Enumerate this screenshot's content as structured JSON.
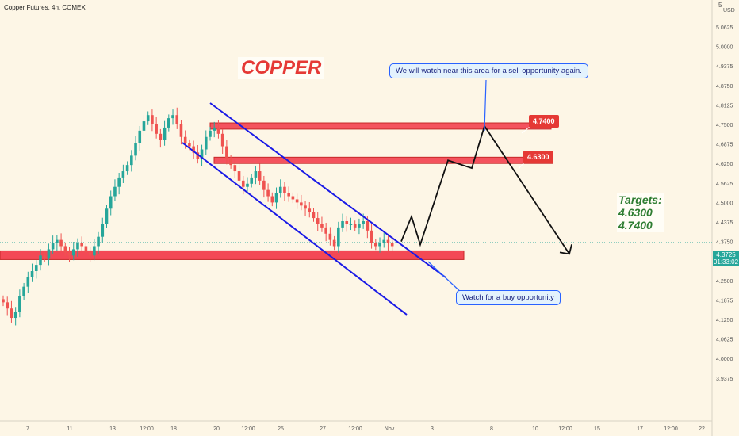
{
  "header": {
    "title": "Copper Futures, 4h, COMEX"
  },
  "price_axis": {
    "currency": "USD",
    "top_marker": "5",
    "labels": [
      "5.0625",
      "5.0000",
      "4.9375",
      "4.8750",
      "4.8125",
      "4.7500",
      "4.6875",
      "4.6250",
      "4.5625",
      "4.5000",
      "4.4375",
      "4.3750",
      "4.3125",
      "4.2500",
      "4.1875",
      "4.1250",
      "4.0625",
      "4.0000",
      "3.9375"
    ],
    "current_price": "4.3725",
    "current_time": "01:33:02"
  },
  "time_axis": {
    "labels": [
      "7",
      "11",
      "13",
      "12:00",
      "18",
      "20",
      "12:00",
      "25",
      "27",
      "12:00",
      "Nov",
      "3",
      "8",
      "10",
      "12:00",
      "15",
      "17",
      "12:00",
      "22"
    ]
  },
  "annotations": {
    "title": "COPPER",
    "sell_note": "We will watch near this area for a sell opportunity again.",
    "buy_note": "Watch for a buy opportunity",
    "level_1": "4.7400",
    "level_2": "4.6300",
    "targets_heading": "Targets:",
    "target_1": "4.6300",
    "target_2": "4.7400"
  },
  "colors": {
    "bull": "#26A69A",
    "bear": "#EF5350",
    "channel": "#1A1AE6",
    "zone": "#F23645",
    "background": "#FDF6E6"
  },
  "chart_data": {
    "type": "candlestick",
    "title": "Copper Futures, 4h, COMEX",
    "ylim": [
      3.92,
      5.1
    ],
    "current_price": 4.3725,
    "close_series": [
      4.18,
      4.16,
      4.13,
      4.15,
      4.2,
      4.23,
      4.26,
      4.28,
      4.3,
      4.33,
      4.32,
      4.35,
      4.37,
      4.38,
      4.36,
      4.34,
      4.33,
      4.35,
      4.37,
      4.36,
      4.34,
      4.33,
      4.36,
      4.39,
      4.43,
      4.48,
      4.52,
      4.55,
      4.58,
      4.6,
      4.62,
      4.65,
      4.69,
      4.73,
      4.76,
      4.78,
      4.75,
      4.72,
      4.7,
      4.74,
      4.77,
      4.78,
      4.75,
      4.71,
      4.69,
      4.68,
      4.66,
      4.64,
      4.67,
      4.71,
      4.73,
      4.74,
      4.72,
      4.68,
      4.64,
      4.62,
      4.6,
      4.57,
      4.55,
      4.56,
      4.58,
      4.6,
      4.57,
      4.54,
      4.52,
      4.5,
      4.53,
      4.55,
      4.53,
      4.52,
      4.51,
      4.5,
      4.49,
      4.48,
      4.47,
      4.45,
      4.43,
      4.42,
      4.4,
      4.38,
      4.36,
      4.42,
      4.44,
      4.43,
      4.43,
      4.42,
      4.43,
      4.44,
      4.41,
      4.37,
      4.36,
      4.37,
      4.38,
      4.37,
      4.36
    ],
    "resistance_zones": [
      {
        "label": "4.7400",
        "low": 4.735,
        "high": 4.755
      },
      {
        "label": "4.6300",
        "low": 4.625,
        "high": 4.645
      }
    ],
    "support_zone": {
      "low": 4.317,
      "high": 4.345
    },
    "projected_path": [
      4.375,
      4.455,
      4.365,
      4.635,
      4.61,
      4.745,
      4.335
    ],
    "targets": [
      4.63,
      4.74
    ]
  }
}
